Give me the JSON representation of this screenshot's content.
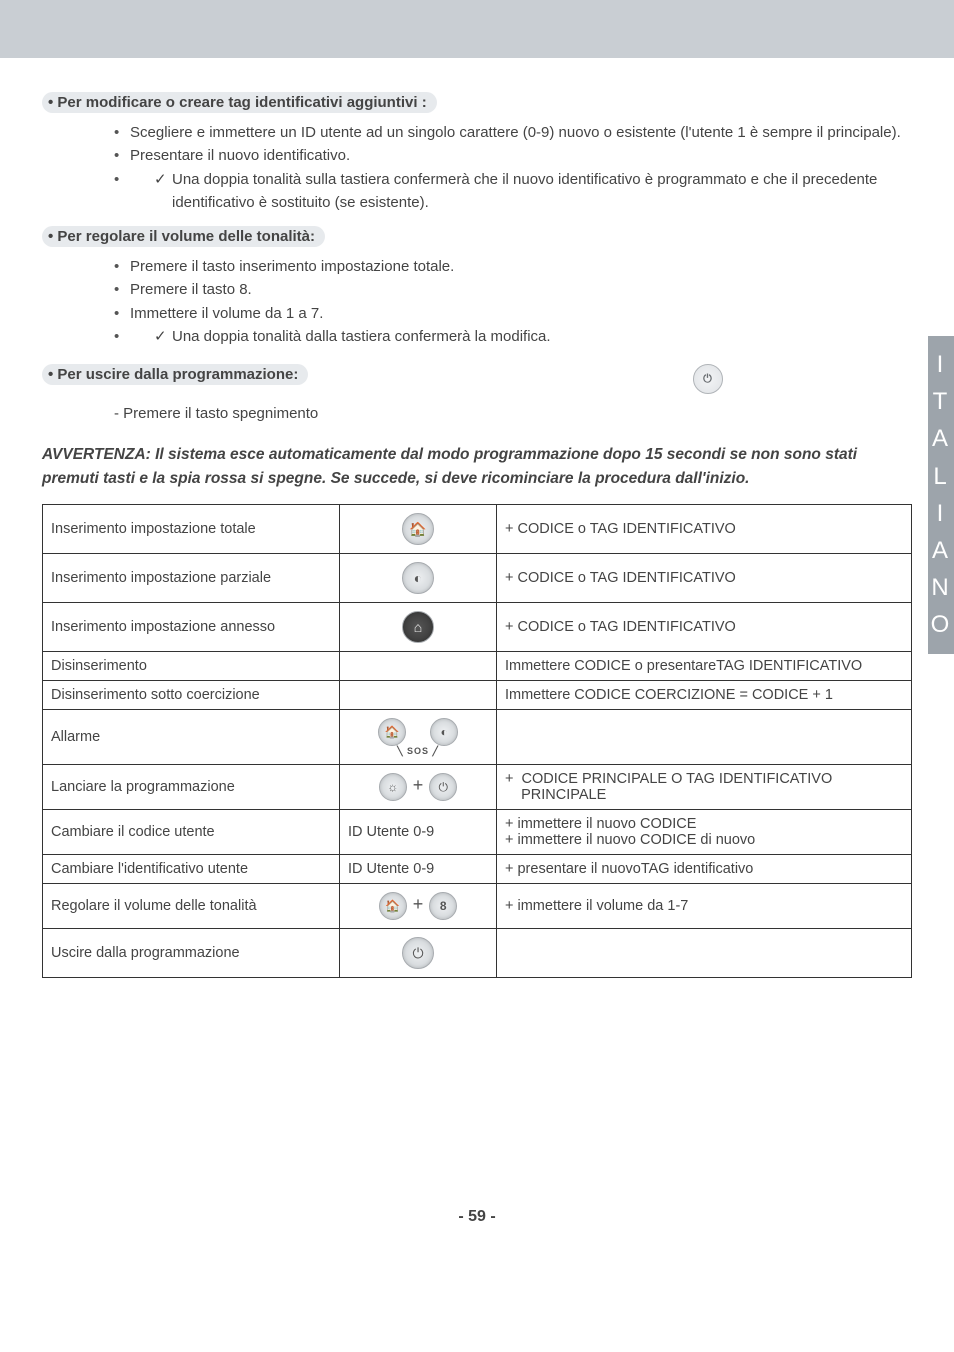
{
  "header_band_color": "#c9ced3",
  "side_tab_letters": [
    "I",
    "T",
    "A",
    "L",
    "I",
    "A",
    "N",
    "O"
  ],
  "section1": {
    "heading": "• Per modificare o creare tag identificativi aggiuntivi :",
    "items": [
      "Scegliere e immettere un ID utente ad un singolo carattere (0-9) nuovo o esistente (l'utente 1 è sempre il principale).",
      "Presentare il nuovo identificativo."
    ],
    "check": "Una doppia tonalità sulla tastiera confermerà che il nuovo identificativo è programmato e che il precedente identificativo è sostituito (se esistente)."
  },
  "section2": {
    "heading": "• Per regolare il volume delle tonalità:",
    "items": [
      "Premere il tasto inserimento impostazione totale.",
      "Premere il tasto 8.",
      "Immettere il volume da 1 a 7."
    ],
    "check": "Una doppia tonalità dalla tastiera confermerà la modifica."
  },
  "section3": {
    "heading": "• Per uscire dalla programmazione:",
    "sub": "- Premere il tasto spegnimento"
  },
  "warning": "AVVERTENZA: Il sistema esce automaticamente dal modo programmazione dopo 15 secondi se non sono stati premuti tasti e la spia rossa si spegne. Se succede, si deve ricominciare la procedura dall'inizio.",
  "table": {
    "rows": [
      {
        "c1": "Inserimento impostazione totale",
        "c2": "icon_total",
        "c3": "+ CODICE o TAG IDENTIFICATIVO"
      },
      {
        "c1": "Inserimento impostazione parziale",
        "c2": "icon_partial",
        "c3": "+ CODICE o TAG IDENTIFICATIVO"
      },
      {
        "c1": "Inserimento impostazione annesso",
        "c2": "icon_annex",
        "c3": "+ CODICE o TAG IDENTIFICATIVO"
      },
      {
        "c1": "Disinserimento",
        "c2": "",
        "c3": "Immettere CODICE o presentareTAG  IDENTIFICATIVO"
      },
      {
        "c1": "Disinserimento sotto coercizione",
        "c2": "",
        "c3": "Immettere CODICE COERCIZIONE =  CODICE + 1"
      },
      {
        "c1": "Allarme",
        "c2": "icon_sos",
        "c3": ""
      },
      {
        "c1": "Lanciare la  programmazione",
        "c2": "icon_prog",
        "c3": "+  CODICE PRINCIPALE O TAG IDENTIFICATIVO PRINCIPALE"
      },
      {
        "c1": "Cambiare il codice utente",
        "c2_text": "ID Utente 0-9",
        "c3": "+ immettere il nuovo CODICE\n+ immettere il nuovo CODICE di nuovo"
      },
      {
        "c1": "Cambiare l'identificativo utente",
        "c2_text": "ID Utente 0-9",
        "c3": "+ presentare il nuovoTAG  identificativo"
      },
      {
        "c1": "Regolare il volume delle tonalità",
        "c2": "icon_vol",
        "c3": "+ immettere il volume da 1-7"
      },
      {
        "c1": "Uscire dalla programmazione",
        "c2": "icon_exit",
        "c3": ""
      }
    ]
  },
  "page_num": "- 59 -"
}
